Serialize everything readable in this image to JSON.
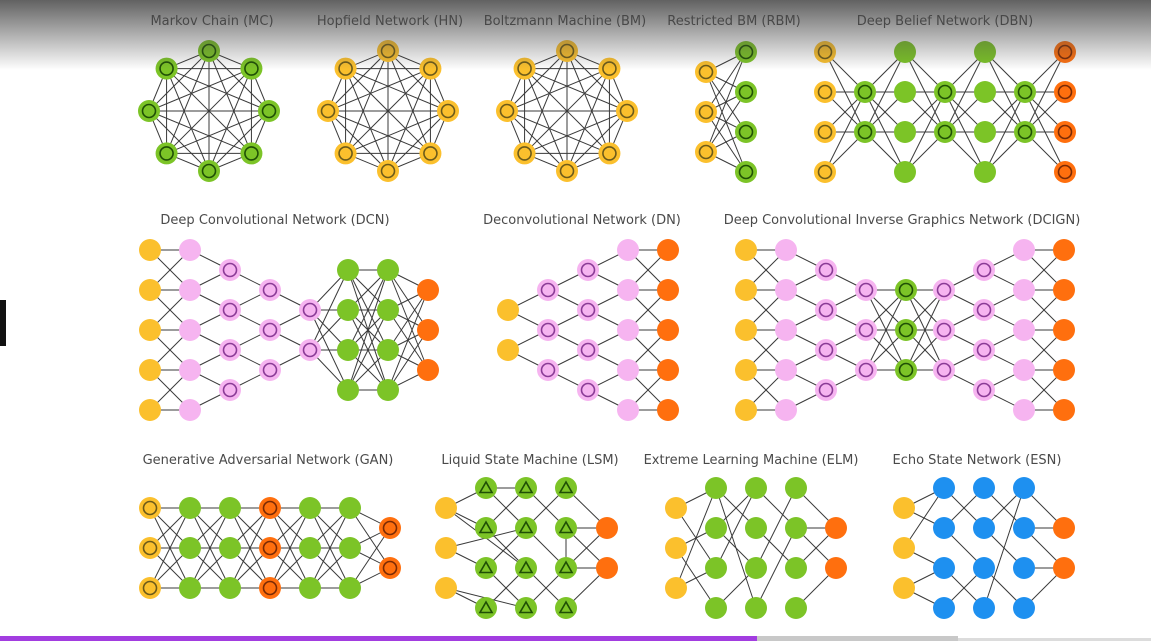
{
  "colors": {
    "input": "#fbc02d",
    "hidden": "#7cc427",
    "hidden_dark": "#4f9a12",
    "output": "#ff6f0e",
    "kernel": "#f6b4f0",
    "kernel_stroke": "#c36fd0",
    "recurrent": "#1e90f0",
    "edge": "#3a3a3a"
  },
  "video": {
    "progress": 0.79
  },
  "networks": [
    {
      "id": "mc",
      "title": "Markov Chain (MC)"
    },
    {
      "id": "hn",
      "title": "Hopfield Network (HN)"
    },
    {
      "id": "bm",
      "title": "Boltzmann Machine (BM)"
    },
    {
      "id": "rbm",
      "title": "Restricted BM (RBM)"
    },
    {
      "id": "dbn",
      "title": "Deep Belief Network (DBN)"
    },
    {
      "id": "dcn",
      "title": "Deep Convolutional Network (DCN)"
    },
    {
      "id": "dn",
      "title": "Deconvolutional Network (DN)"
    },
    {
      "id": "dcign",
      "title": "Deep Convolutional Inverse Graphics Network (DCIGN)"
    },
    {
      "id": "gan",
      "title": "Generative Adversarial Network (GAN)"
    },
    {
      "id": "lsm",
      "title": "Liquid State Machine (LSM)"
    },
    {
      "id": "elm",
      "title": "Extreme Learning Machine (ELM)"
    },
    {
      "id": "esn",
      "title": "Echo State Network (ESN)"
    }
  ]
}
